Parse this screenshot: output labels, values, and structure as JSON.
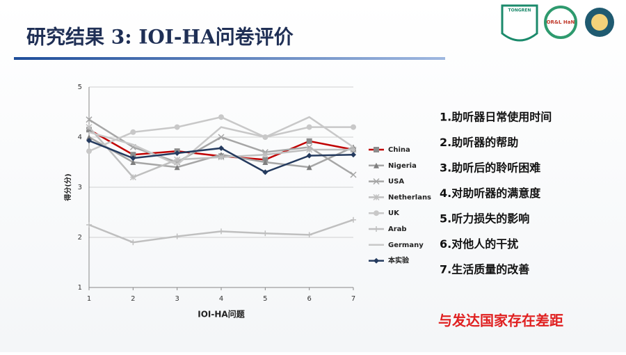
{
  "header": {
    "title": "研究结果 3:  IOI-HA问卷评价",
    "logo_text": "TONGREN",
    "logo2_text": "OR&L HaN"
  },
  "chart_data": {
    "type": "line",
    "x_label": "IOI-HA问题",
    "y_label": "得分(分)",
    "x": [
      1,
      2,
      3,
      4,
      5,
      6,
      7
    ],
    "xlim": [
      1,
      7
    ],
    "xticks": [
      1,
      2,
      3,
      4,
      5,
      6,
      7
    ],
    "ylim": [
      1,
      5
    ],
    "yticks": [
      1,
      2,
      3,
      4,
      5
    ],
    "grid": true,
    "series": [
      {
        "name": "China",
        "color": "#c00000",
        "marker": "square",
        "values": [
          4.15,
          3.65,
          3.72,
          3.62,
          3.55,
          3.92,
          3.75
        ]
      },
      {
        "name": "Nigeria",
        "color": "#a6a6a6",
        "marker": "triangle",
        "values": [
          4.0,
          3.5,
          3.4,
          3.65,
          3.5,
          3.4,
          3.8
        ]
      },
      {
        "name": "USA",
        "color": "#a6a6a6",
        "marker": "x",
        "values": [
          4.35,
          3.8,
          3.5,
          4.0,
          3.7,
          3.8,
          3.25
        ]
      },
      {
        "name": "Netherlans",
        "color": "#bfbfbf",
        "marker": "star",
        "values": [
          4.2,
          3.2,
          3.55,
          3.6,
          3.65,
          3.75,
          3.75
        ]
      },
      {
        "name": "UK",
        "color": "#c8c8c8",
        "marker": "circle",
        "values": [
          3.72,
          4.1,
          4.2,
          4.4,
          4.0,
          4.2,
          4.2
        ]
      },
      {
        "name": "Arab",
        "color": "#bfbfbf",
        "marker": "plus",
        "values": [
          2.25,
          1.9,
          2.02,
          2.12,
          2.08,
          2.05,
          2.35
        ]
      },
      {
        "name": "Germany",
        "color": "#c8c8c8",
        "marker": "none",
        "values": [
          4.1,
          3.85,
          3.45,
          4.2,
          4.0,
          4.4,
          3.8
        ]
      },
      {
        "name": "本实验",
        "color": "#243a5e",
        "marker": "diamond",
        "values": [
          3.93,
          3.58,
          3.68,
          3.78,
          3.3,
          3.63,
          3.65
        ]
      }
    ]
  },
  "items": [
    "1.助听器日常使用时间",
    "2.助听器的帮助",
    "3.助听后的聆听困难",
    "4.对助听器的满意度",
    "5.听力损失的影响",
    "6.对他人的干扰",
    "7.生活质量的改善"
  ],
  "conclusion": "与发达国家存在差距"
}
